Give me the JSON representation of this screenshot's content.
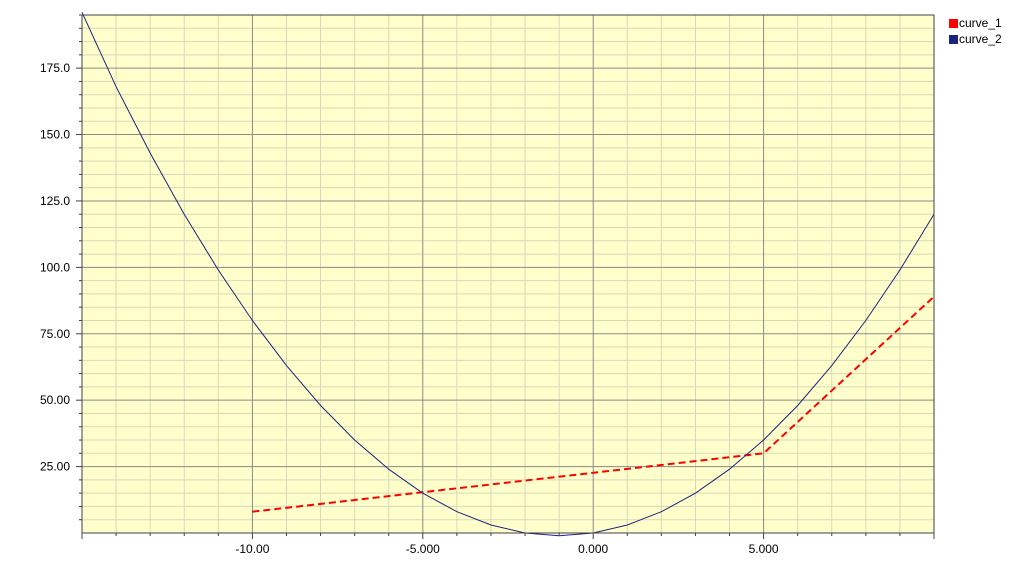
{
  "chart_data": {
    "type": "line",
    "title": "",
    "xlabel": "",
    "ylabel": "",
    "xlim": [
      -15,
      10
    ],
    "ylim": [
      0,
      195
    ],
    "grid": true,
    "legend_position": "top-right",
    "background_color": "#ffffcc",
    "x_ticks": [
      {
        "value": -10,
        "label": "-10.00"
      },
      {
        "value": -5,
        "label": "-5.000"
      },
      {
        "value": 0,
        "label": "0.000"
      },
      {
        "value": 5,
        "label": "5.000"
      }
    ],
    "y_ticks": [
      {
        "value": 25,
        "label": "25.00"
      },
      {
        "value": 50,
        "label": "50.00"
      },
      {
        "value": 75,
        "label": "75.00"
      },
      {
        "value": 100,
        "label": "100.0"
      },
      {
        "value": 125,
        "label": "125.0"
      },
      {
        "value": 150,
        "label": "150.0"
      },
      {
        "value": 175,
        "label": "175.0"
      }
    ],
    "series": [
      {
        "name": "curve_1",
        "color": "#ff0000",
        "style": "dashed",
        "x": [
          -10,
          5,
          10
        ],
        "y": [
          8,
          30,
          89
        ]
      },
      {
        "name": "curve_2",
        "color": "#1a237e",
        "style": "solid",
        "x": [
          -15,
          -14,
          -13,
          -12,
          -11,
          -10,
          -9,
          -8,
          -7,
          -6,
          -5,
          -4,
          -3,
          -2,
          -1,
          0,
          1,
          2,
          3,
          4,
          5,
          6,
          7,
          8,
          9,
          10
        ],
        "y": [
          196,
          168,
          143,
          120,
          99,
          80,
          63,
          48,
          35,
          24,
          15,
          8,
          3,
          0,
          -1,
          0,
          3,
          8,
          15,
          24,
          35,
          48,
          63,
          80,
          99,
          120
        ]
      }
    ]
  }
}
